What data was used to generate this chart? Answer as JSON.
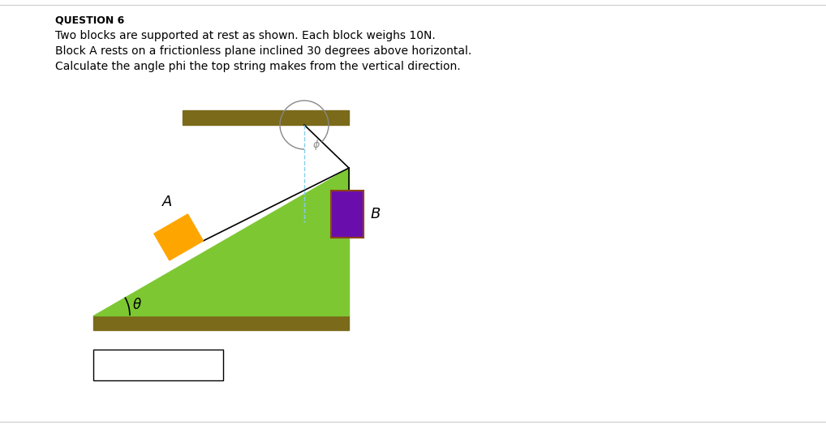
{
  "title": "QUESTION 6",
  "text_lines": [
    "Two blocks are supported at rest as shown. Each block weighs 10N.",
    "Block A rests on a frictionless plane inclined 30 degrees above horizontal.",
    "Calculate the angle phi the top string makes from the vertical direction."
  ],
  "bg_color": "#ffffff",
  "text_color": "#000000",
  "floor_color": "#7a6a1a",
  "ceiling_color": "#7a6a1a",
  "triangle_color": "#7dc832",
  "block_a_color": "#ffa500",
  "block_b_fill": "#6a0dad",
  "block_b_edge": "#8b4513",
  "string_color": "#000000",
  "dashed_color": "#87ceeb",
  "phi_color": "#888888",
  "theta_color": "#000000",
  "answer_box_color": "#000000",
  "separator_color": "#cccccc",
  "title_fontsize": 9,
  "body_fontsize": 10
}
